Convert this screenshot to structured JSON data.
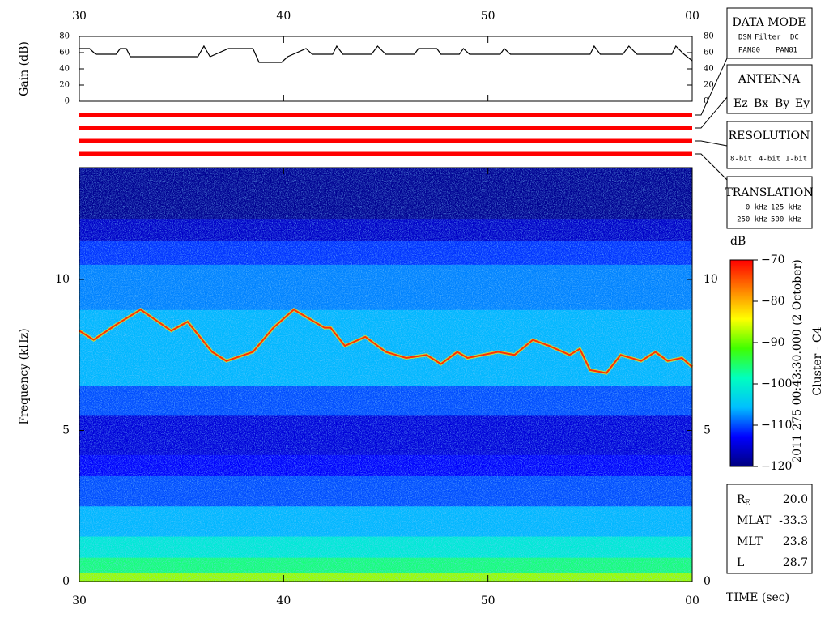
{
  "chart_data": [
    {
      "type": "line",
      "ylabel": "Gain (dB)",
      "xlim": [
        30,
        60
      ],
      "xticks": [
        30,
        40,
        50,
        {
          "value": 60,
          "label": "00"
        }
      ],
      "ylim": [
        0,
        80
      ],
      "yticks": [
        0,
        20,
        40,
        60,
        80
      ],
      "color": "#000000",
      "x": [
        30,
        30.5,
        30.8,
        31.8,
        32.0,
        32.3,
        32.5,
        35.8,
        36.1,
        36.4,
        37.3,
        38.5,
        38.8,
        39.9,
        40.2,
        41.1,
        41.4,
        42.4,
        42.6,
        42.9,
        44.3,
        44.6,
        45.0,
        46.4,
        46.6,
        47.5,
        47.7,
        48.6,
        48.8,
        49.1,
        50.6,
        50.8,
        51.1,
        55.0,
        55.2,
        55.5,
        56.6,
        56.9,
        57.3,
        59.0,
        59.2,
        59.6,
        60
      ],
      "values": [
        65,
        65,
        58,
        58,
        65,
        65,
        55,
        55,
        68,
        55,
        65,
        65,
        48,
        48,
        55,
        65,
        58,
        58,
        68,
        58,
        58,
        68,
        58,
        58,
        65,
        65,
        58,
        58,
        65,
        58,
        58,
        65,
        58,
        58,
        68,
        58,
        58,
        68,
        58,
        58,
        68,
        58,
        50
      ]
    },
    {
      "type": "heatmap",
      "ylabel": "Frequency (kHz)",
      "xlabel": "TIME (sec)",
      "xlim": [
        30,
        60
      ],
      "xticks": [
        30,
        40,
        50,
        {
          "value": 60,
          "label": "00"
        }
      ],
      "ylim": [
        0,
        13.7
      ],
      "yticks": [
        0,
        5,
        10
      ],
      "bands": [
        0,
        0.3,
        0.8,
        1.5,
        2.5,
        3.5,
        4.2,
        5.5,
        6.5,
        9,
        10.5,
        11.3,
        12,
        13.7
      ],
      "levels": [
        -88,
        -96,
        -101,
        -106,
        -110,
        -113,
        -115,
        -110,
        -106,
        -108,
        -111,
        -116,
        -119
      ],
      "trace_x": [
        30,
        30.7,
        31.8,
        33,
        34.5,
        35.3,
        36.5,
        37.2,
        38.5,
        39.5,
        40,
        40.5,
        42,
        42.3,
        43,
        44,
        45,
        46,
        47,
        47.7,
        48.5,
        49,
        50.5,
        51.3,
        52.2,
        53,
        54,
        54.5,
        55,
        55.8,
        56.5,
        57.5,
        58.2,
        58.8,
        59.5,
        60
      ],
      "trace_y": [
        8.3,
        8.0,
        8.5,
        9.0,
        8.3,
        8.6,
        7.6,
        7.3,
        7.6,
        8.4,
        8.7,
        9.0,
        8.4,
        8.4,
        7.8,
        8.1,
        7.6,
        7.4,
        7.5,
        7.2,
        7.6,
        7.4,
        7.6,
        7.5,
        8.0,
        7.8,
        7.5,
        7.7,
        7.0,
        6.9,
        7.5,
        7.3,
        7.6,
        7.3,
        7.4,
        7.1
      ],
      "trace_color": "#ff3000",
      "colormap": [
        "#00007f",
        "#0000ff",
        "#00bfff",
        "#00ffbf",
        "#40ff00",
        "#ffff00",
        "#ff8000",
        "#ff0000"
      ],
      "colorbar": {
        "label": "dB",
        "clim": [
          -120,
          -70
        ],
        "ticks": [
          {
            "value": -120,
            "label": "−120"
          },
          {
            "value": -110,
            "label": "−110"
          },
          {
            "value": -100,
            "label": "−100"
          },
          {
            "value": -90,
            "label": "−90"
          },
          {
            "value": -80,
            "label": "−80"
          },
          {
            "value": -70,
            "label": "−70"
          }
        ]
      }
    }
  ],
  "side": {
    "data_mode": {
      "title": "DATA MODE",
      "items": [
        "DSN",
        "Filter",
        "DC",
        "PAN80",
        "PAN81"
      ]
    },
    "antenna": {
      "title": "ANTENNA",
      "items": [
        "Ez",
        "Bx",
        "By",
        "Ey"
      ]
    },
    "resolution": {
      "title": "RESOLUTION",
      "items": [
        "8-bit",
        "4-bit",
        "1-bit"
      ]
    },
    "translation": {
      "title": "TRANSLATION",
      "items": [
        "0 kHz",
        "125 kHz",
        "250 kHz",
        "500 kHz"
      ]
    },
    "timestamp": "2011 275 00:43:30.000 (2 October)",
    "spacecraft": "Cluster - C4",
    "info": [
      {
        "label": "R",
        "sub": "E",
        "value": "20.0"
      },
      {
        "label": "MLAT",
        "value": "-33.3"
      },
      {
        "label": "MLT",
        "value": "23.8"
      },
      {
        "label": "L",
        "value": "28.7"
      }
    ]
  }
}
